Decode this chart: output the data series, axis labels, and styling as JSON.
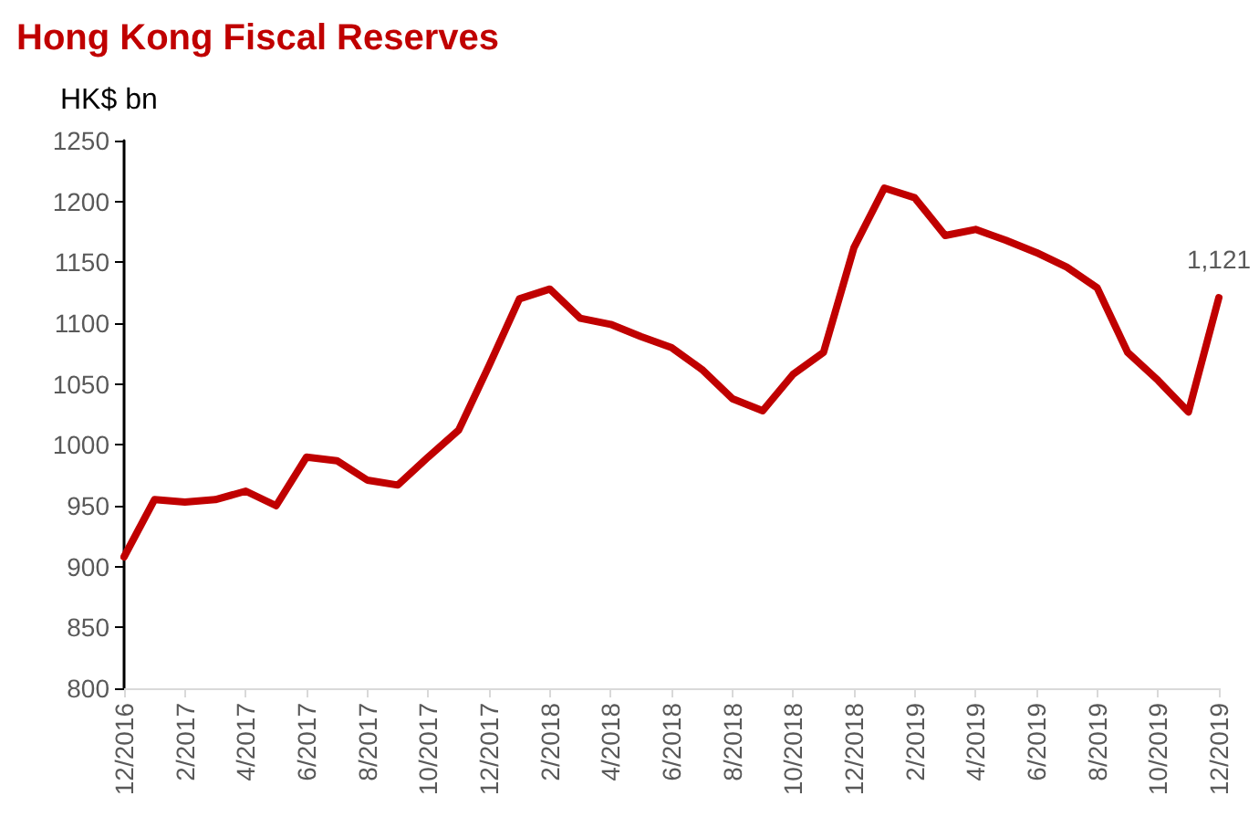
{
  "chart_data": {
    "type": "line",
    "title": "Hong Kong Fiscal Reserves",
    "ylabel": "HK$ bn",
    "categories": [
      "12/2016",
      null,
      "2/2017",
      null,
      "4/2017",
      null,
      "6/2017",
      null,
      "8/2017",
      null,
      "10/2017",
      null,
      "12/2017",
      null,
      "2/2018",
      null,
      "4/2018",
      null,
      "6/2018",
      null,
      "8/2018",
      null,
      "10/2018",
      null,
      "12/2018",
      null,
      "2/2019",
      null,
      "4/2019",
      null,
      "6/2019",
      null,
      "8/2019",
      null,
      "10/2019",
      null,
      "12/2019"
    ],
    "series": [
      {
        "color": "#c00000",
        "values": [
          908,
          955,
          953,
          955,
          962,
          950,
          990,
          987,
          971,
          967,
          990,
          1012,
          1065,
          1120,
          1128,
          1104,
          1099,
          1089,
          1080,
          1062,
          1038,
          1028,
          1058,
          1076,
          1162,
          1211,
          1203,
          1172,
          1177,
          1168,
          1158,
          1146,
          1129,
          1076,
          1053,
          1027,
          1121
        ],
        "value_labels": [
          null,
          null,
          null,
          null,
          null,
          null,
          null,
          null,
          null,
          null,
          null,
          null,
          null,
          null,
          null,
          null,
          null,
          null,
          null,
          null,
          null,
          null,
          null,
          null,
          null,
          null,
          null,
          null,
          null,
          null,
          null,
          null,
          null,
          null,
          null,
          null,
          "1,121"
        ]
      }
    ],
    "ylim": [
      800,
      1250
    ],
    "yticks": [
      800,
      850,
      900,
      950,
      1000,
      1050,
      1100,
      1150,
      1200,
      1250
    ],
    "grid": false,
    "marker": "none",
    "line_style": "solid"
  }
}
